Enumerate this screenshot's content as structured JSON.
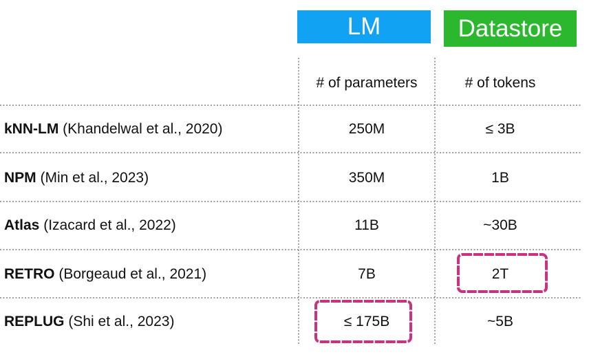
{
  "header": {
    "lm": "LM",
    "datastore": "Datastore"
  },
  "table": {
    "columns": [
      "# of parameters",
      "# of tokens"
    ],
    "rows": [
      {
        "name": "kNN-LM",
        "citation": "(Khandelwal et al., 2020)",
        "parameters": "250M",
        "tokens": "≤ 3B"
      },
      {
        "name": "NPM",
        "citation": "(Min et al., 2023)",
        "parameters": "350M",
        "tokens": "1B"
      },
      {
        "name": "Atlas",
        "citation": "(Izacard et al., 2022)",
        "parameters": "11B",
        "tokens": "~30B"
      },
      {
        "name": "RETRO",
        "citation": "(Borgeaud et al., 2021)",
        "parameters": "7B",
        "tokens": "2T"
      },
      {
        "name": "REPLUG",
        "citation": "(Shi et al., 2023)",
        "parameters": "≤ 175B",
        "tokens": "~5B"
      }
    ]
  }
}
